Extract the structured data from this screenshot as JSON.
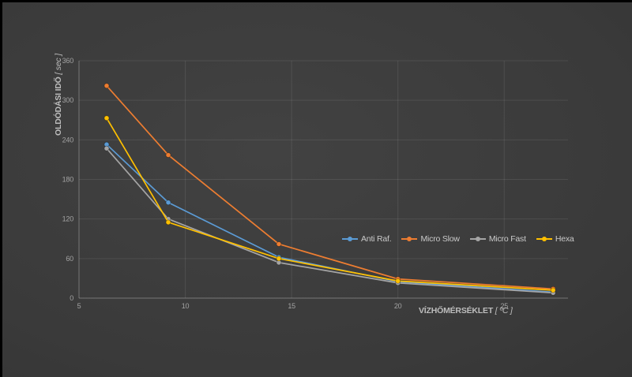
{
  "chart_data": {
    "type": "line",
    "title": "",
    "ylabel": "OLDÓDÁSI IDŐ",
    "ylabel_unit": "[ sec ]",
    "xlabel": "VÍZHŐMÉRSÉKLET",
    "xlabel_unit": "[ ºC ]",
    "xlim": [
      5,
      28
    ],
    "ylim": [
      0,
      360
    ],
    "x_ticks": [
      5,
      10,
      15,
      20,
      25
    ],
    "y_ticks": [
      0,
      60,
      120,
      180,
      240,
      300,
      360
    ],
    "grid": true,
    "legend_position": "inside-plot-right",
    "x": [
      6.3,
      9.2,
      14.4,
      20,
      27.3
    ],
    "series": [
      {
        "name": "Anti Raf.",
        "color": "#5B9BD5",
        "values": [
          233,
          145,
          62,
          25,
          9
        ]
      },
      {
        "name": "Micro Slow",
        "color": "#ED7D31",
        "values": [
          322,
          217,
          82,
          29,
          14
        ]
      },
      {
        "name": "Micro Fast",
        "color": "#A5A5A5",
        "values": [
          227,
          120,
          54,
          23,
          8
        ]
      },
      {
        "name": "Hexa",
        "color": "#FFC000",
        "values": [
          273,
          115,
          60,
          26,
          12
        ]
      }
    ]
  }
}
